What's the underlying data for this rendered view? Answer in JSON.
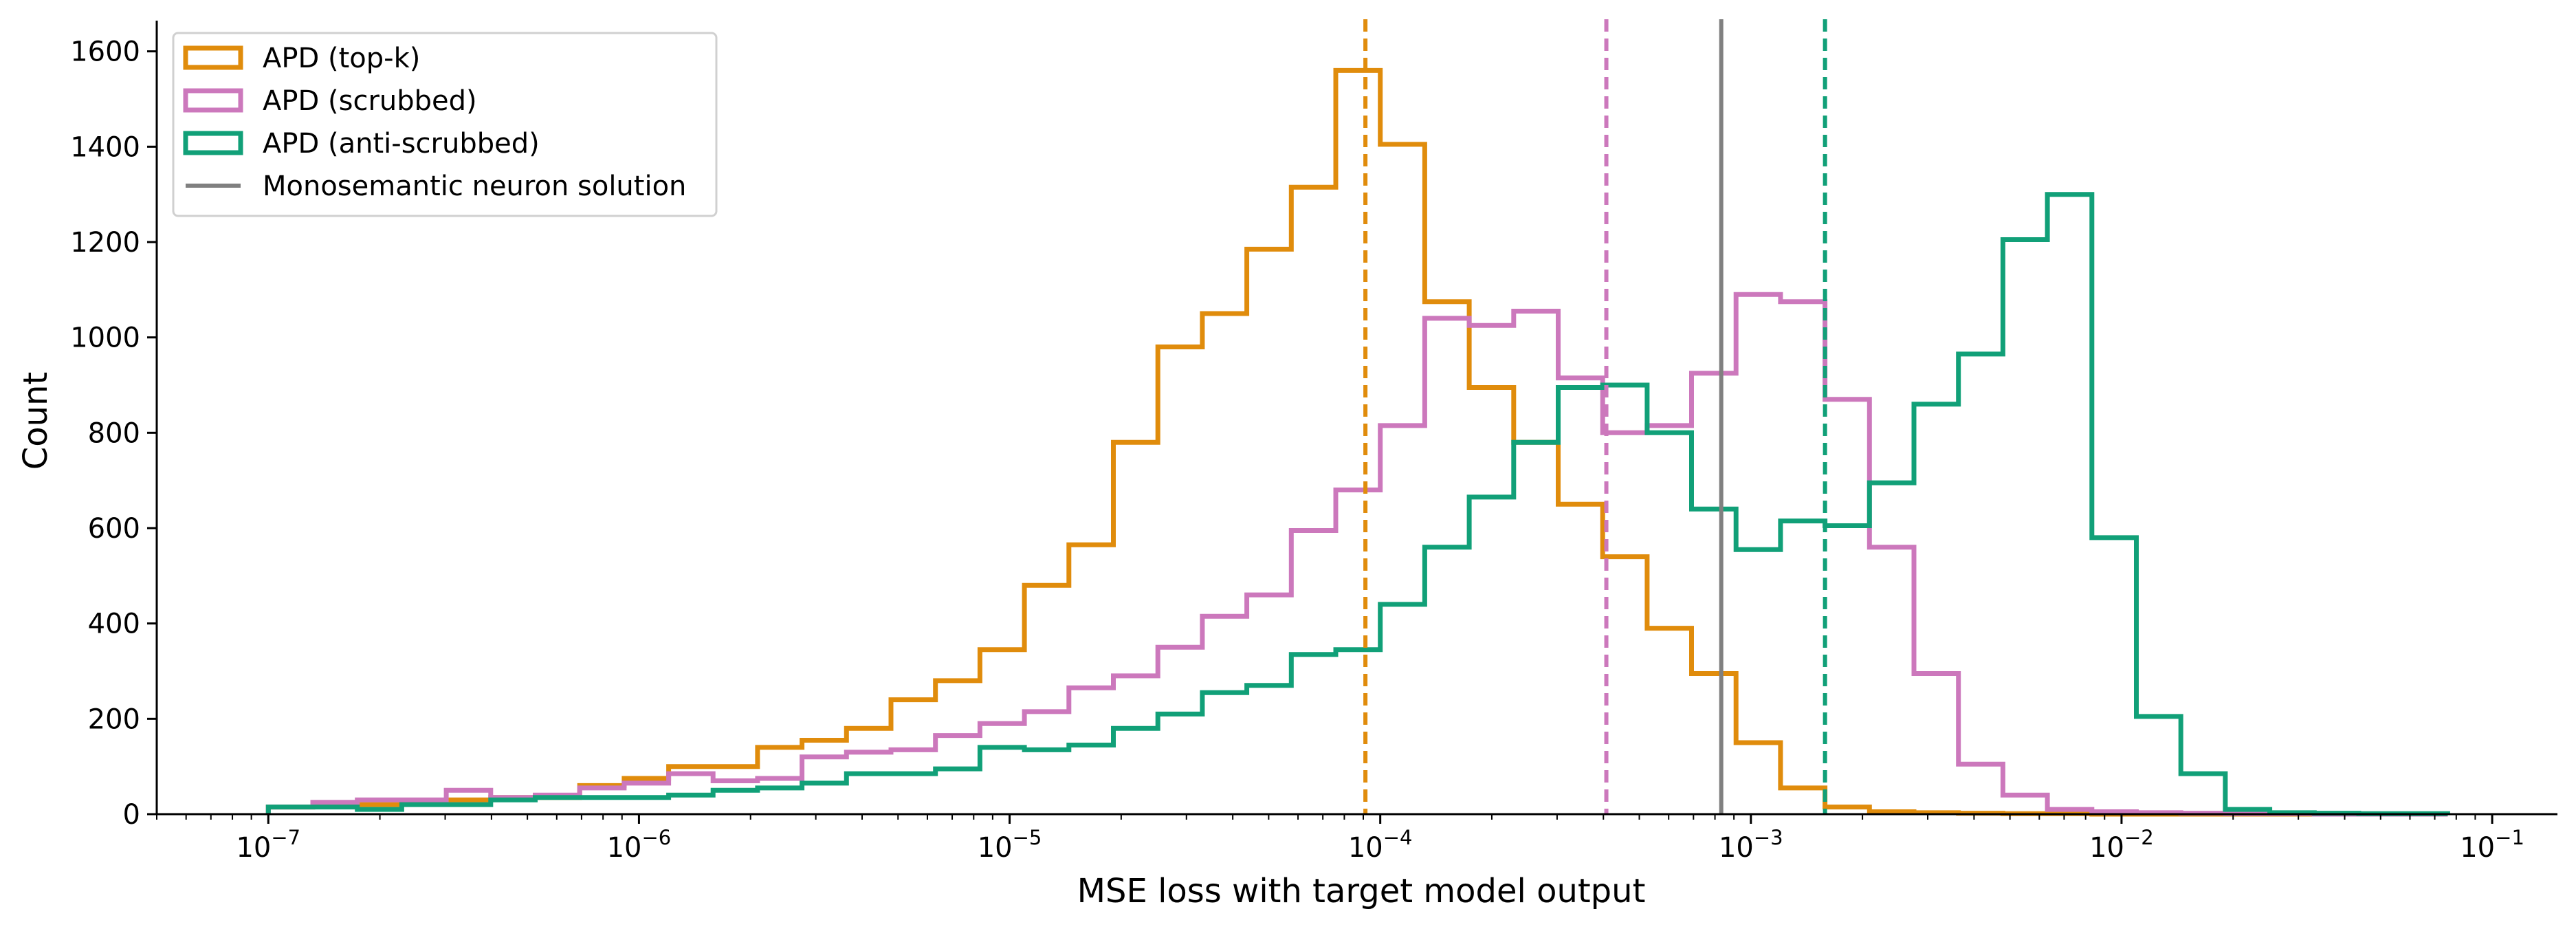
{
  "chart_data": {
    "type": "histogram",
    "xscale": "log",
    "xlim": [
      5e-08,
      0.15
    ],
    "ylim": [
      0,
      1650
    ],
    "xlabel": "MSE loss with target model output",
    "ylabel": "Count",
    "grid": false,
    "legend_position": "top-left",
    "xticks": [
      {
        "exp": -7,
        "label": "10",
        "sup": "−7"
      },
      {
        "exp": -6,
        "label": "10",
        "sup": "−6"
      },
      {
        "exp": -5,
        "label": "10",
        "sup": "−5"
      },
      {
        "exp": -4,
        "label": "10",
        "sup": "−4"
      },
      {
        "exp": -3,
        "label": "10",
        "sup": "−3"
      },
      {
        "exp": -2,
        "label": "10",
        "sup": "−2"
      },
      {
        "exp": -1,
        "label": "10",
        "sup": "−1"
      }
    ],
    "yticks": [
      0,
      200,
      400,
      600,
      800,
      1000,
      1200,
      1400,
      1600
    ],
    "bin_edges_log10": [
      -7.0,
      -6.88,
      -6.76,
      -6.64,
      -6.52,
      -6.4,
      -6.28,
      -6.16,
      -6.04,
      -5.92,
      -5.8,
      -5.68,
      -5.56,
      -5.44,
      -5.32,
      -5.2,
      -5.08,
      -4.96,
      -4.84,
      -4.72,
      -4.6,
      -4.48,
      -4.36,
      -4.24,
      -4.12,
      -4.0,
      -3.88,
      -3.76,
      -3.64,
      -3.52,
      -3.4,
      -3.28,
      -3.16,
      -3.04,
      -2.92,
      -2.8,
      -2.68,
      -2.56,
      -2.44,
      -2.32,
      -2.2,
      -2.08,
      -1.96,
      -1.84,
      -1.72,
      -1.6,
      -1.48,
      -1.36,
      -1.24,
      -1.12
    ],
    "series": [
      {
        "name": "APD (top-k)",
        "color": "#e08c0c",
        "style": "step",
        "counts": [
          15,
          20,
          20,
          25,
          30,
          35,
          35,
          60,
          75,
          100,
          100,
          140,
          155,
          180,
          240,
          280,
          345,
          480,
          565,
          780,
          980,
          1050,
          1185,
          1315,
          1560,
          1405,
          1075,
          895,
          780,
          650,
          540,
          390,
          295,
          150,
          55,
          15,
          5,
          3,
          2,
          1,
          1,
          0,
          0,
          0,
          0,
          0,
          0,
          0,
          0
        ],
        "mean_line_log10": -4.04,
        "mean_line_style": "dashed"
      },
      {
        "name": "APD (scrubbed)",
        "color": "#cc78bc",
        "style": "step",
        "counts": [
          15,
          25,
          30,
          30,
          50,
          35,
          40,
          55,
          65,
          85,
          70,
          75,
          120,
          130,
          135,
          165,
          190,
          215,
          265,
          290,
          350,
          415,
          460,
          595,
          680,
          815,
          1040,
          1025,
          1055,
          915,
          800,
          815,
          925,
          1090,
          1075,
          870,
          560,
          295,
          105,
          40,
          10,
          5,
          3,
          2,
          1,
          1,
          0,
          0,
          0
        ],
        "mean_line_log10": -3.39,
        "mean_line_style": "dashed"
      },
      {
        "name": "APD (anti-scrubbed)",
        "color": "#11a078",
        "style": "step",
        "counts": [
          15,
          15,
          10,
          20,
          20,
          30,
          35,
          35,
          35,
          40,
          50,
          55,
          65,
          85,
          85,
          95,
          140,
          135,
          145,
          180,
          210,
          255,
          270,
          335,
          345,
          440,
          560,
          665,
          780,
          895,
          900,
          800,
          640,
          555,
          615,
          605,
          695,
          860,
          965,
          1205,
          1300,
          580,
          205,
          85,
          10,
          3,
          2,
          1,
          1
        ],
        "mean_line_log10": -2.8,
        "mean_line_style": "dashed"
      },
      {
        "name": "Monosemantic neuron solution",
        "color": "#808080",
        "style": "vline",
        "x_log10": -3.08
      }
    ]
  }
}
